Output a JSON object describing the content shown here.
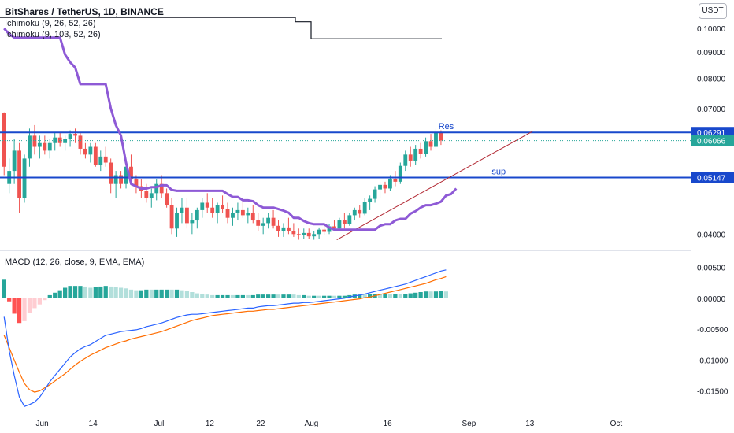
{
  "header": {
    "title": "BitShares / TetherUS, 1D, BINANCE",
    "indicator1": "Ichimoku (9, 26, 52, 26)",
    "indicator2": "Ichimoku (9, 103, 52, 26)",
    "currency_button": "USDT"
  },
  "macd_label": "MACD (12, 26, close, 9, EMA, EMA)",
  "colors": {
    "up": "#26a69a",
    "down": "#ef5350",
    "ichimoku": "#8e5ad6",
    "hline": "#1848cc",
    "macd": "#2962ff",
    "signal": "#ff6d00",
    "trendline": "#b22833",
    "hist_pos_strong": "#26a69a",
    "hist_pos_weak": "#b2dfdb",
    "hist_neg_strong": "#ff5252",
    "hist_neg_weak": "#ffcdd2"
  },
  "chart_data": [
    {
      "type": "candlestick",
      "pair": "BitShares / TetherUS",
      "interval": "1D",
      "exchange": "BINANCE",
      "yscale": "log",
      "y_ticks": [
        "0.10000",
        "0.09000",
        "0.08000",
        "0.07000",
        "0.04000"
      ],
      "x_ticks": [
        "Jun",
        "14",
        "Jul",
        "12",
        "22",
        "Aug",
        "16",
        "Sep",
        "13",
        "Oct"
      ],
      "price_labels": [
        {
          "text": "0.06291",
          "value": 0.06291,
          "style": "line"
        },
        {
          "text": "0.06066",
          "value": 0.06066,
          "style": "last"
        },
        {
          "text": "0.05147",
          "value": 0.05147,
          "style": "line"
        }
      ],
      "annotations": [
        {
          "text": "Res",
          "value": 0.06291
        },
        {
          "text": "sup",
          "value": 0.05147
        }
      ],
      "candles": [
        [
          0.0685,
          0.0688,
          0.052,
          0.054
        ],
        [
          0.05,
          0.056,
          0.048,
          0.053
        ],
        [
          0.053,
          0.061,
          0.05,
          0.058
        ],
        [
          0.058,
          0.06,
          0.044,
          0.047
        ],
        [
          0.047,
          0.057,
          0.046,
          0.056
        ],
        [
          0.056,
          0.064,
          0.054,
          0.062
        ],
        [
          0.062,
          0.065,
          0.057,
          0.059
        ],
        [
          0.059,
          0.062,
          0.056,
          0.06
        ],
        [
          0.06,
          0.062,
          0.057,
          0.058
        ],
        [
          0.058,
          0.061,
          0.056,
          0.06
        ],
        [
          0.06,
          0.063,
          0.058,
          0.0615
        ],
        [
          0.0615,
          0.063,
          0.059,
          0.06
        ],
        [
          0.06,
          0.062,
          0.058,
          0.061
        ],
        [
          0.061,
          0.0635,
          0.059,
          0.0625
        ],
        [
          0.0625,
          0.064,
          0.06,
          0.062
        ],
        [
          0.062,
          0.063,
          0.057,
          0.0585
        ],
        [
          0.0585,
          0.06,
          0.056,
          0.057
        ],
        [
          0.057,
          0.06,
          0.055,
          0.059
        ],
        [
          0.059,
          0.06,
          0.054,
          0.0545
        ],
        [
          0.0545,
          0.058,
          0.053,
          0.0565
        ],
        [
          0.0565,
          0.059,
          0.054,
          0.055
        ],
        [
          0.055,
          0.056,
          0.048,
          0.05
        ],
        [
          0.05,
          0.053,
          0.047,
          0.052
        ],
        [
          0.052,
          0.053,
          0.049,
          0.05
        ],
        [
          0.05,
          0.056,
          0.049,
          0.054
        ],
        [
          0.054,
          0.057,
          0.05,
          0.051
        ],
        [
          0.051,
          0.052,
          0.048,
          0.0495
        ],
        [
          0.0495,
          0.051,
          0.047,
          0.0485
        ],
        [
          0.0485,
          0.05,
          0.046,
          0.047
        ],
        [
          0.047,
          0.049,
          0.045,
          0.048
        ],
        [
          0.048,
          0.051,
          0.0465,
          0.05
        ],
        [
          0.05,
          0.052,
          0.047,
          0.048
        ],
        [
          0.048,
          0.049,
          0.045,
          0.0455
        ],
        [
          0.0455,
          0.047,
          0.04,
          0.041
        ],
        [
          0.041,
          0.045,
          0.0395,
          0.044
        ],
        [
          0.044,
          0.047,
          0.042,
          0.045
        ],
        [
          0.045,
          0.047,
          0.041,
          0.042
        ],
        [
          0.042,
          0.044,
          0.04,
          0.0425
        ],
        [
          0.0425,
          0.045,
          0.041,
          0.0445
        ],
        [
          0.0445,
          0.047,
          0.043,
          0.046
        ],
        [
          0.046,
          0.048,
          0.044,
          0.045
        ],
        [
          0.045,
          0.047,
          0.043,
          0.044
        ],
        [
          0.044,
          0.046,
          0.042,
          0.0455
        ],
        [
          0.0455,
          0.0475,
          0.044,
          0.0448
        ],
        [
          0.0448,
          0.046,
          0.042,
          0.043
        ],
        [
          0.043,
          0.045,
          0.0415,
          0.044
        ],
        [
          0.044,
          0.046,
          0.0425,
          0.0445
        ],
        [
          0.0445,
          0.047,
          0.043,
          0.0435
        ],
        [
          0.0435,
          0.045,
          0.042,
          0.044
        ],
        [
          0.044,
          0.0455,
          0.042,
          0.0425
        ],
        [
          0.0425,
          0.044,
          0.0405,
          0.0415
        ],
        [
          0.0415,
          0.043,
          0.04,
          0.042
        ],
        [
          0.042,
          0.044,
          0.041,
          0.043
        ],
        [
          0.043,
          0.0445,
          0.041,
          0.0415
        ],
        [
          0.0415,
          0.0425,
          0.0395,
          0.0405
        ],
        [
          0.0405,
          0.042,
          0.0395,
          0.0412
        ],
        [
          0.0412,
          0.043,
          0.04,
          0.0405
        ],
        [
          0.0405,
          0.042,
          0.0395,
          0.04
        ],
        [
          0.04,
          0.041,
          0.039,
          0.0398
        ],
        [
          0.0398,
          0.041,
          0.0392,
          0.0402
        ],
        [
          0.0402,
          0.041,
          0.0392,
          0.0396
        ],
        [
          0.0396,
          0.0405,
          0.039,
          0.04
        ],
        [
          0.04,
          0.0412,
          0.0392,
          0.0408
        ],
        [
          0.0408,
          0.0415,
          0.0398,
          0.0404
        ],
        [
          0.0404,
          0.0418,
          0.04,
          0.0414
        ],
        [
          0.0414,
          0.0425,
          0.0405,
          0.041
        ],
        [
          0.041,
          0.043,
          0.0405,
          0.0425
        ],
        [
          0.0425,
          0.044,
          0.041,
          0.0418
        ],
        [
          0.0418,
          0.044,
          0.0415,
          0.0435
        ],
        [
          0.0435,
          0.045,
          0.0425,
          0.0445
        ],
        [
          0.0445,
          0.0455,
          0.043,
          0.0438
        ],
        [
          0.0438,
          0.047,
          0.0435,
          0.0462
        ],
        [
          0.0462,
          0.0475,
          0.0445,
          0.0468
        ],
        [
          0.0468,
          0.0495,
          0.046,
          0.0488
        ],
        [
          0.0488,
          0.0505,
          0.047,
          0.0498
        ],
        [
          0.0498,
          0.0505,
          0.048,
          0.049
        ],
        [
          0.049,
          0.052,
          0.0485,
          0.0512
        ],
        [
          0.0512,
          0.053,
          0.0495,
          0.0505
        ],
        [
          0.0505,
          0.055,
          0.05,
          0.0542
        ],
        [
          0.0542,
          0.058,
          0.053,
          0.057
        ],
        [
          0.057,
          0.059,
          0.054,
          0.0555
        ],
        [
          0.0555,
          0.0595,
          0.0545,
          0.0585
        ],
        [
          0.0585,
          0.06,
          0.056,
          0.0572
        ],
        [
          0.0572,
          0.0615,
          0.0565,
          0.0605
        ],
        [
          0.0605,
          0.0625,
          0.058,
          0.059
        ],
        [
          0.059,
          0.064,
          0.0585,
          0.0628
        ],
        [
          0.0628,
          0.0635,
          0.0595,
          0.0607
        ]
      ],
      "ichimoku_lead_line": [
        0.1,
        0.0975,
        0.096,
        0.096,
        0.096,
        0.096,
        0.096,
        0.096,
        0.096,
        0.096,
        0.096,
        0.096,
        0.089,
        0.086,
        0.084,
        0.078,
        0.078,
        0.078,
        0.078,
        0.078,
        0.078,
        0.07,
        0.065,
        0.062,
        0.055,
        0.05,
        0.0495,
        0.049,
        0.049,
        0.0493,
        0.0493,
        0.0497,
        0.0497,
        0.0487,
        0.0485,
        0.0485,
        0.0485,
        0.0485,
        0.0485,
        0.0485,
        0.0485,
        0.0485,
        0.0485,
        0.0485,
        0.0478,
        0.0472,
        0.0472,
        0.0465,
        0.0465,
        0.0463,
        0.0455,
        0.045,
        0.045,
        0.045,
        0.0447,
        0.0444,
        0.044,
        0.043,
        0.043,
        0.0424,
        0.042,
        0.0418,
        0.0418,
        0.0418,
        0.0412,
        0.0408,
        0.0408,
        0.0408,
        0.0408,
        0.0408,
        0.0408,
        0.0408,
        0.0408,
        0.0408,
        0.0415,
        0.0418,
        0.0418,
        0.0425,
        0.0428,
        0.0428,
        0.0438,
        0.0443,
        0.045,
        0.0455,
        0.0455,
        0.0458,
        0.0462,
        0.0475,
        0.0478,
        0.049
      ],
      "ichimoku_lagging_line": [
        0.105,
        0.105,
        0.105,
        0.105,
        0.105,
        0.103,
        0.0955,
        0.0955,
        0.0955,
        0.0955,
        0.0955,
        0.0955,
        0.0955,
        0.0955,
        0.0955
      ],
      "trend_line": [
        [
          0.039,
          0.0632
        ]
      ],
      "horizontal_lines": [
        0.06291,
        0.05147
      ]
    },
    {
      "type": "line",
      "name": "MACD (12, 26, close, 9, EMA, EMA)",
      "y_ticks": [
        "0.00500",
        "0.00000",
        "-0.00500",
        "-0.01000",
        "-0.01500"
      ],
      "ylim": [
        -0.0185,
        0.0075
      ],
      "macd": [
        -0.003,
        -0.0085,
        -0.0125,
        -0.016,
        -0.0175,
        -0.0172,
        -0.0168,
        -0.016,
        -0.0148,
        -0.0135,
        -0.0125,
        -0.0115,
        -0.0105,
        -0.0095,
        -0.0088,
        -0.0082,
        -0.0078,
        -0.0075,
        -0.007,
        -0.0065,
        -0.006,
        -0.0058,
        -0.0056,
        -0.0054,
        -0.0053,
        -0.0052,
        -0.0051,
        -0.0049,
        -0.0046,
        -0.0044,
        -0.0042,
        -0.004,
        -0.0037,
        -0.0034,
        -0.0031,
        -0.0029,
        -0.0027,
        -0.0026,
        -0.0026,
        -0.0025,
        -0.0024,
        -0.0023,
        -0.0022,
        -0.0021,
        -0.002,
        -0.0019,
        -0.0018,
        -0.0017,
        -0.0016,
        -0.0016,
        -0.0014,
        -0.0013,
        -0.0012,
        -0.0012,
        -0.0011,
        -0.001,
        -0.0009,
        -0.0008,
        -0.0008,
        -0.0007,
        -0.0007,
        -0.0006,
        -0.0005,
        -0.0004,
        -0.0003,
        -0.0002,
        -0.0001,
        0.0,
        0.0002,
        0.0004,
        0.0005,
        0.0007,
        0.0009,
        0.0011,
        0.0013,
        0.0015,
        0.0017,
        0.0019,
        0.0021,
        0.0023,
        0.0026,
        0.0029,
        0.0032,
        0.0035,
        0.0038,
        0.0041,
        0.0044,
        0.0046
      ],
      "signal": [
        -0.006,
        -0.008,
        -0.01,
        -0.012,
        -0.0138,
        -0.0148,
        -0.0152,
        -0.015,
        -0.0145,
        -0.014,
        -0.0134,
        -0.0128,
        -0.0122,
        -0.0115,
        -0.0108,
        -0.0102,
        -0.0097,
        -0.0092,
        -0.0088,
        -0.0084,
        -0.008,
        -0.0077,
        -0.0074,
        -0.0071,
        -0.0069,
        -0.0066,
        -0.0064,
        -0.0062,
        -0.006,
        -0.0058,
        -0.0056,
        -0.0054,
        -0.0051,
        -0.0048,
        -0.0045,
        -0.0042,
        -0.0039,
        -0.0036,
        -0.0034,
        -0.0032,
        -0.003,
        -0.0028,
        -0.0027,
        -0.0026,
        -0.0025,
        -0.0024,
        -0.0023,
        -0.0022,
        -0.0021,
        -0.0021,
        -0.002,
        -0.0019,
        -0.0018,
        -0.0018,
        -0.0017,
        -0.0016,
        -0.0015,
        -0.0014,
        -0.0013,
        -0.0012,
        -0.0011,
        -0.001,
        -0.0009,
        -0.0008,
        -0.0007,
        -0.0006,
        -0.0005,
        -0.0004,
        -0.0003,
        -0.0002,
        -0.0001,
        0.0001,
        0.0002,
        0.0004,
        0.0006,
        0.0008,
        0.001,
        0.0012,
        0.0014,
        0.0016,
        0.0018,
        0.002,
        0.0022,
        0.0024,
        0.0027,
        0.003,
        0.0032,
        0.0035
      ]
    }
  ],
  "x_axis": {
    "ticks": [
      {
        "label": "Jun",
        "bar": 8
      },
      {
        "label": "14",
        "bar": 18
      },
      {
        "label": "Jul",
        "bar": 31
      },
      {
        "label": "12",
        "bar": 41
      },
      {
        "label": "22",
        "bar": 51
      },
      {
        "label": "Aug",
        "bar": 61
      },
      {
        "label": "16",
        "bar": 76
      },
      {
        "label": "Sep",
        "bar": 92
      },
      {
        "label": "13",
        "bar": 104
      },
      {
        "label": "Oct",
        "bar": 121
      }
    ]
  }
}
